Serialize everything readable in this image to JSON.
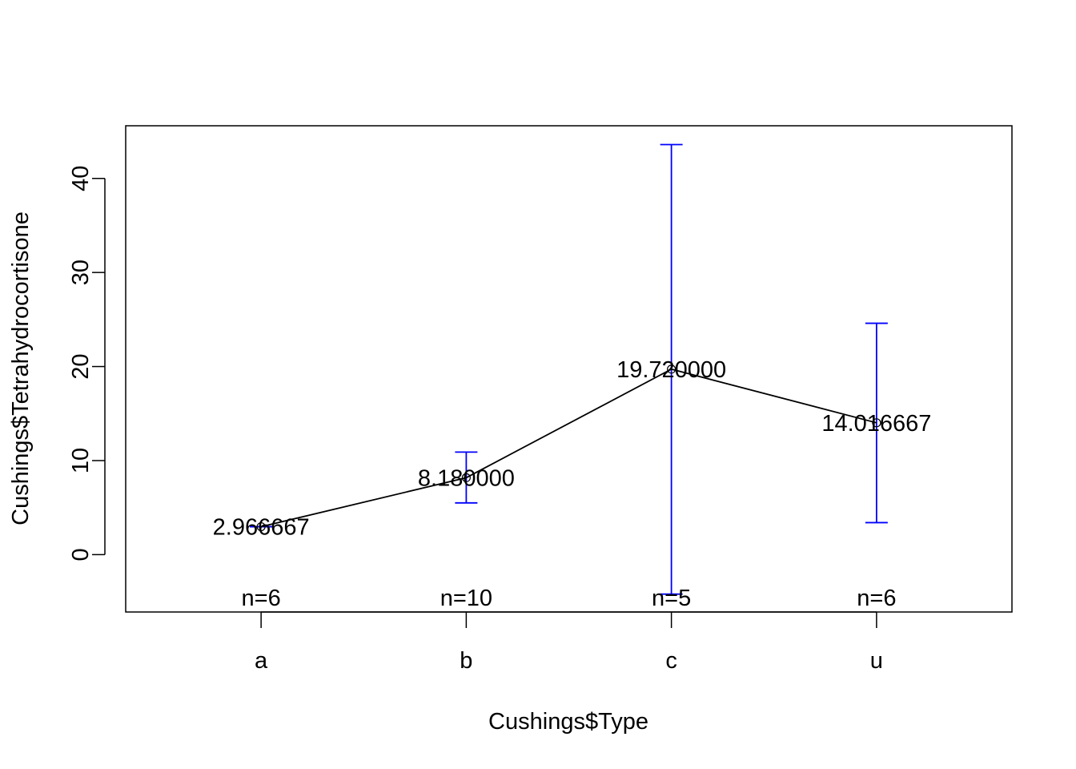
{
  "chart_data": {
    "type": "line",
    "title": "",
    "xlabel": "Cushings$Type",
    "ylabel": "Cushings$Tetrahydrocortisone",
    "categories": [
      "a",
      "b",
      "c",
      "u"
    ],
    "series": [
      {
        "values": [
          2.966667,
          8.18,
          19.72,
          14.016667
        ]
      }
    ],
    "value_labels": [
      "2.966667",
      "8.180000",
      "19.720000",
      "14.016667"
    ],
    "error_bars": [
      {
        "lower": 2.966667,
        "upper": 2.966667
      },
      {
        "lower": 5.5,
        "upper": 10.9
      },
      {
        "lower": -4.2,
        "upper": 43.6
      },
      {
        "lower": 3.4,
        "upper": 24.6
      }
    ],
    "n_labels": [
      "n=6",
      "n=10",
      "n=5",
      "n=6"
    ],
    "y_ticks": [
      "0",
      "10",
      "20",
      "30",
      "40"
    ],
    "y_tick_values": [
      0,
      10,
      20,
      30,
      40
    ],
    "ylim": [
      -6.1,
      45.6
    ],
    "xlim": [
      0.34,
      4.66
    ],
    "grid": false,
    "colors": {
      "line": "#000000",
      "error_bar": "#0000ff"
    }
  }
}
